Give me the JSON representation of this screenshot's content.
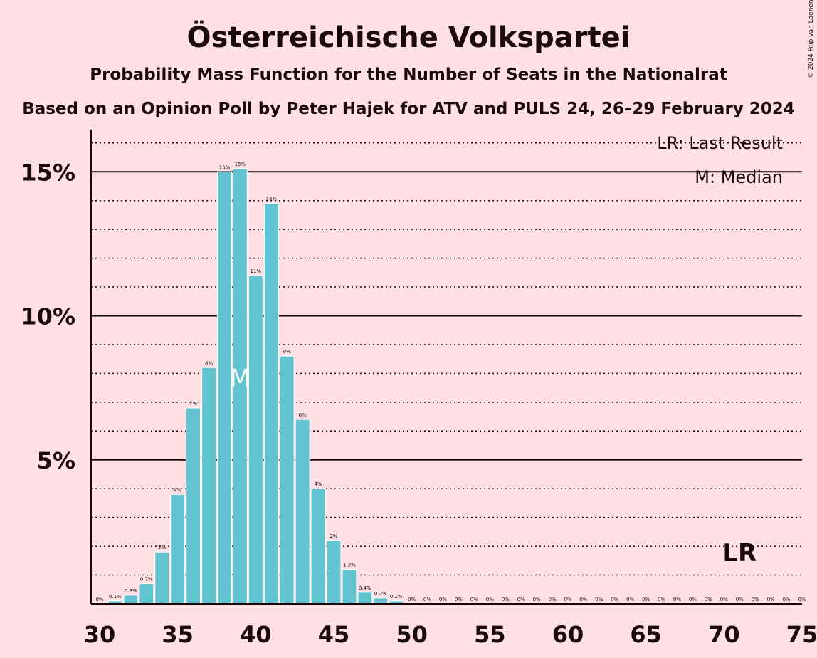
{
  "copyright": "© 2024 Filip van Laenen",
  "legend": {
    "lr": "LR: Last Result",
    "m": "M: Median"
  },
  "chart_data": {
    "type": "bar",
    "title": "Österreichische Volkspartei",
    "subtitle": "Probability Mass Function for the Number of Seats in the Nationalrat",
    "subtitle2": "Based on an Opinion Poll by Peter Hajek for ATV and PULS 24, 26–29 February 2024",
    "xlabel": "",
    "ylabel": "",
    "xlim": [
      30,
      75
    ],
    "ylim": [
      0,
      16.5
    ],
    "x_ticks": [
      30,
      35,
      40,
      45,
      50,
      55,
      60,
      65,
      70,
      75
    ],
    "y_ticks": [
      5,
      10,
      15
    ],
    "y_tick_labels": [
      "5%",
      "10%",
      "15%"
    ],
    "grid": "solid major lines at 5% steps, dotted minor lines at 1% steps",
    "color": "#62C3D1",
    "x": [
      30,
      31,
      32,
      33,
      34,
      35,
      36,
      37,
      38,
      39,
      40,
      41,
      42,
      43,
      44,
      45,
      46,
      47,
      48,
      49,
      50,
      51,
      52,
      53,
      54,
      55,
      56,
      57,
      58,
      59,
      60,
      61,
      62,
      63,
      64,
      65,
      66,
      67,
      68,
      69,
      70,
      71,
      72,
      73,
      74,
      75
    ],
    "values": [
      0,
      0.1,
      0.3,
      0.7,
      1.8,
      3.8,
      6.8,
      8.2,
      15.0,
      15.1,
      11.4,
      13.9,
      8.6,
      6.4,
      4.0,
      2.2,
      1.2,
      0.4,
      0.2,
      0.1,
      0,
      0,
      0,
      0,
      0,
      0,
      0,
      0,
      0,
      0,
      0,
      0,
      0,
      0,
      0,
      0,
      0,
      0,
      0,
      0,
      0,
      0,
      0,
      0,
      0,
      0
    ],
    "labels": [
      "0%",
      "0.1%",
      "0.3%",
      "0.7%",
      "2%",
      "4%",
      "7%",
      "8%",
      "15%",
      "15%",
      "11%",
      "14%",
      "9%",
      "6%",
      "4%",
      "2%",
      "1.2%",
      "0.4%",
      "0.2%",
      "0.1%",
      "0%",
      "0%",
      "0%",
      "0%",
      "0%",
      "0%",
      "0%",
      "0%",
      "0%",
      "0%",
      "0%",
      "0%",
      "0%",
      "0%",
      "0%",
      "0%",
      "0%",
      "0%",
      "0%",
      "0%",
      "0%",
      "0%",
      "0%",
      "0%",
      "0%",
      "0%"
    ],
    "median": 39,
    "median_label": "M",
    "last_result": 71,
    "last_result_label": "LR"
  }
}
